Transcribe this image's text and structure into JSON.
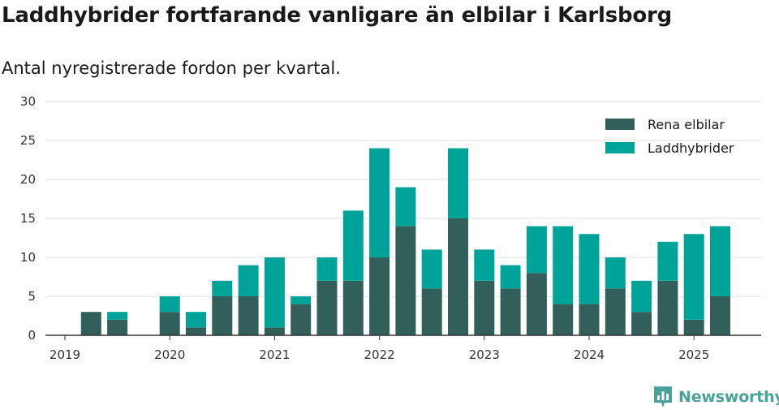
{
  "header": {
    "title": "Laddhybrider fortfarande vanligare än elbilar i Karlsborg",
    "subtitle": "Antal nyregistrerade fordon per kvartal."
  },
  "brand": {
    "name": "Newsworthy",
    "icon": "newsworthy-logo-icon",
    "color": "#4aa39a"
  },
  "chart_data": {
    "type": "bar",
    "stacked": true,
    "title": "Laddhybrider fortfarande vanligare än elbilar i Karlsborg",
    "subtitle": "Antal nyregistrerade fordon per kvartal.",
    "categories": [
      "2019 Q1",
      "2019 Q2",
      "2019 Q3",
      "2019 Q4",
      "2020 Q1",
      "2020 Q2",
      "2020 Q3",
      "2020 Q4",
      "2021 Q1",
      "2021 Q2",
      "2021 Q3",
      "2021 Q4",
      "2022 Q1",
      "2022 Q2",
      "2022 Q3",
      "2022 Q4",
      "2023 Q1",
      "2023 Q2",
      "2023 Q3",
      "2023 Q4",
      "2024 Q1",
      "2024 Q2",
      "2024 Q3",
      "2024 Q4",
      "2025 Q1",
      "2025 Q2"
    ],
    "x_tick_labels": [
      "2019",
      "2020",
      "2021",
      "2022",
      "2023",
      "2024",
      "2025"
    ],
    "series": [
      {
        "name": "Rena elbilar",
        "color": "#335f5b",
        "values": [
          0,
          3,
          2,
          0,
          3,
          1,
          5,
          5,
          1,
          4,
          7,
          7,
          10,
          14,
          6,
          15,
          7,
          6,
          8,
          4,
          4,
          6,
          3,
          7,
          2,
          5
        ]
      },
      {
        "name": "Laddhybrider",
        "color": "#00a397",
        "values": [
          0,
          0,
          1,
          0,
          2,
          2,
          2,
          4,
          9,
          1,
          3,
          9,
          14,
          5,
          5,
          9,
          4,
          3,
          6,
          10,
          9,
          4,
          4,
          5,
          11,
          9
        ]
      }
    ],
    "ylim": [
      0,
      30
    ],
    "y_ticks": [
      "0",
      "5",
      "10",
      "15",
      "20",
      "25",
      "30"
    ],
    "grid": true,
    "legend_position": "top-right"
  }
}
